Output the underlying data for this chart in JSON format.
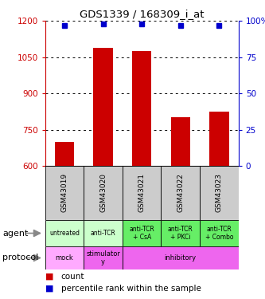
{
  "title": "GDS1339 / 168309_i_at",
  "samples": [
    "GSM43019",
    "GSM43020",
    "GSM43021",
    "GSM43022",
    "GSM43023"
  ],
  "counts": [
    700,
    1090,
    1075,
    800,
    825
  ],
  "percentile_ranks": [
    97,
    98,
    98,
    97,
    97
  ],
  "ylim_left": [
    600,
    1200
  ],
  "ylim_right": [
    0,
    100
  ],
  "yticks_left": [
    600,
    750,
    900,
    1050,
    1200
  ],
  "yticks_right": [
    0,
    25,
    50,
    75,
    100
  ],
  "bar_color": "#cc0000",
  "dot_color": "#0000cc",
  "agent_labels": [
    "untreated",
    "anti-TCR",
    "anti-TCR\n+ CsA",
    "anti-TCR\n+ PKCi",
    "anti-TCR\n+ Combo"
  ],
  "agent_bg_light": "#ccffcc",
  "agent_bg_dark": "#66ee66",
  "protocol_mock_bg": "#ffaaff",
  "protocol_stim_bg": "#ee66ee",
  "protocol_inhib_bg": "#ee66ee",
  "sample_bg": "#cccccc",
  "legend_count_color": "#cc0000",
  "legend_pct_color": "#0000cc",
  "left_label_color": "#555555"
}
